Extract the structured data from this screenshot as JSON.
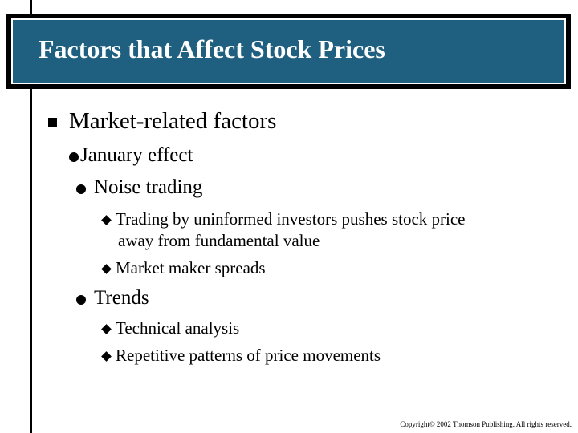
{
  "slide": {
    "title": "Factors that Affect Stock Prices",
    "level1": "Market-related factors",
    "bullets": {
      "january": "January effect",
      "noise": "Noise trading",
      "noise_sub1_line1": "Trading by uninformed investors pushes stock price",
      "noise_sub1_line2": "away from fundamental value",
      "noise_sub2": "Market maker spreads",
      "trends": "Trends",
      "trends_sub1": "Technical analysis",
      "trends_sub2": "Repetitive patterns of price movements"
    },
    "copyright": "Copyright© 2002 Thomson Publishing. All rights reserved."
  },
  "colors": {
    "title_background": "#1f6080",
    "title_text": "#ffffff"
  }
}
